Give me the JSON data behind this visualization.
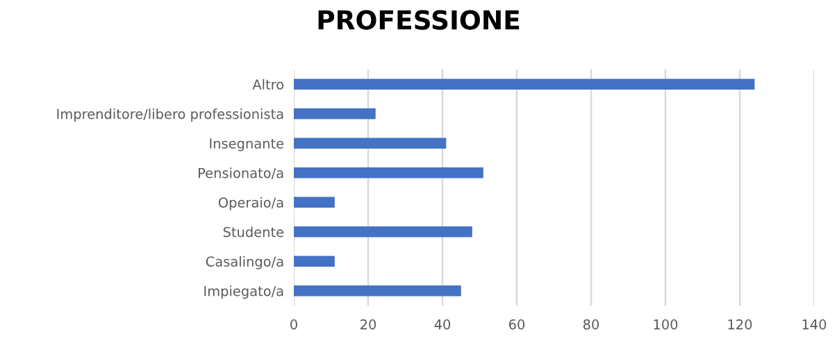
{
  "chart_data": {
    "type": "bar",
    "orientation": "horizontal",
    "title": "PROFESSIONE",
    "categories": [
      "Altro",
      "Imprenditore/libero professionista",
      "Insegnante",
      "Pensionato/a",
      "Operaio/a",
      "Studente",
      "Casalingo/a",
      "Impiegato/a"
    ],
    "values": [
      124,
      22,
      41,
      51,
      11,
      48,
      11,
      45
    ],
    "color": "#4472c4",
    "xlim": [
      0,
      140
    ],
    "xticks": [
      0,
      20,
      40,
      60,
      80,
      100,
      120,
      140
    ],
    "grid": "x",
    "legend": false
  }
}
